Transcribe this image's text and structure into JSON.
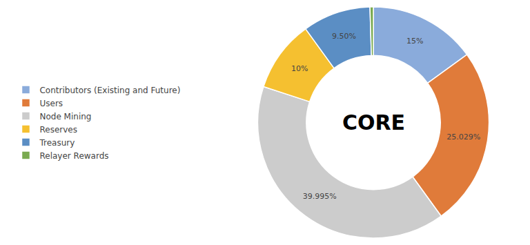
{
  "chart_data": {
    "type": "donut",
    "title": "CORE",
    "categories": [
      "Contributors (Existing and Future)",
      "Users",
      "Node Mining",
      "Reserves",
      "Treasury",
      "Relayer Rewards"
    ],
    "values": [
      15.0,
      25.029,
      39.995,
      10.0,
      9.5,
      0.476
    ],
    "value_labels": [
      "15%",
      "25.029%",
      "39.995%",
      "10%",
      "9.50%",
      null
    ],
    "colors": [
      "#8aabdb",
      "#e07b3a",
      "#cccccc",
      "#f5c030",
      "#5b8ec4",
      "#7aaa50"
    ],
    "data_labels": true,
    "legend": "left"
  }
}
